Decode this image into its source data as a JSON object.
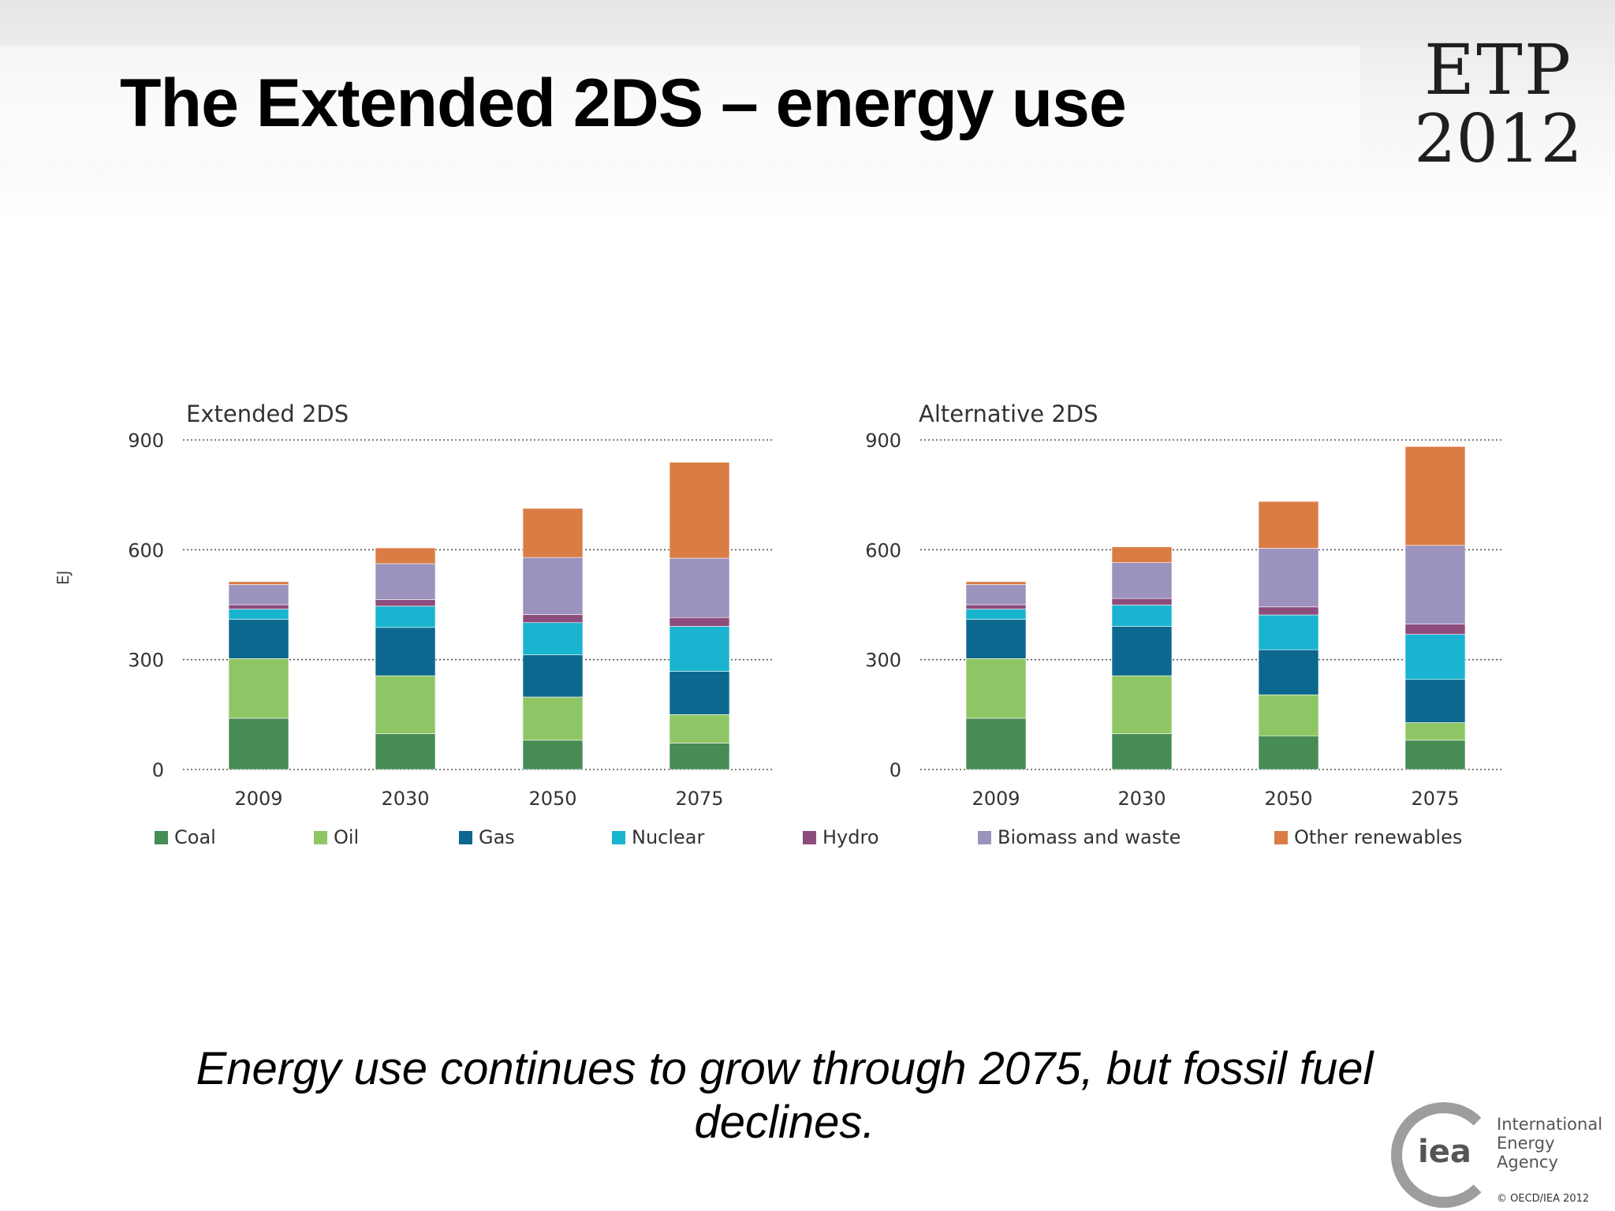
{
  "slide": {
    "title": "The Extended 2DS – energy use",
    "logo_line1": "ETP",
    "logo_line2": "2012",
    "caption": "Energy use continues to grow through 2075, but fossil fuel declines.",
    "iea_mark": "iea",
    "iea_name_line1": "International",
    "iea_name_line2": "Energy Agency",
    "copyright": "© OECD/IEA 2012"
  },
  "chart_data": [
    {
      "type": "bar",
      "stacked": true,
      "title": "Extended 2DS",
      "ylabel": "EJ",
      "ylim": [
        0,
        900
      ],
      "yticks": [
        0,
        300,
        600,
        900
      ],
      "grid": "horizontal dotted",
      "categories": [
        "2009",
        "2030",
        "2050",
        "2075"
      ],
      "series": [
        {
          "name": "Coal",
          "values": [
            140,
            98,
            80,
            72
          ]
        },
        {
          "name": "Oil",
          "values": [
            163,
            158,
            118,
            78
          ]
        },
        {
          "name": "Gas",
          "values": [
            107,
            132,
            115,
            118
          ]
        },
        {
          "name": "Nuclear",
          "values": [
            28,
            58,
            88,
            123
          ]
        },
        {
          "name": "Hydro",
          "values": [
            12,
            18,
            22,
            24
          ]
        },
        {
          "name": "Biomass and waste",
          "values": [
            55,
            98,
            156,
            162
          ]
        },
        {
          "name": "Other renewables",
          "values": [
            8,
            43,
            134,
            262
          ]
        }
      ]
    },
    {
      "type": "bar",
      "stacked": true,
      "title": "Alternative 2DS",
      "ylim": [
        0,
        900
      ],
      "yticks": [
        0,
        300,
        600,
        900
      ],
      "grid": "horizontal dotted",
      "categories": [
        "2009",
        "2030",
        "2050",
        "2075"
      ],
      "series": [
        {
          "name": "Coal",
          "values": [
            140,
            98,
            92,
            80
          ]
        },
        {
          "name": "Oil",
          "values": [
            163,
            158,
            112,
            48
          ]
        },
        {
          "name": "Gas",
          "values": [
            107,
            135,
            123,
            118
          ]
        },
        {
          "name": "Nuclear",
          "values": [
            28,
            58,
            95,
            123
          ]
        },
        {
          "name": "Hydro",
          "values": [
            12,
            18,
            22,
            28
          ]
        },
        {
          "name": "Biomass and waste",
          "values": [
            55,
            98,
            160,
            215
          ]
        },
        {
          "name": "Other renewables",
          "values": [
            8,
            43,
            128,
            270
          ]
        }
      ]
    }
  ],
  "legend": {
    "placement": "bottom",
    "items": [
      {
        "label": "Coal",
        "color": "#478b55"
      },
      {
        "label": "Oil",
        "color": "#8fc665"
      },
      {
        "label": "Gas",
        "color": "#0d6890"
      },
      {
        "label": "Nuclear",
        "color": "#1ab4d0"
      },
      {
        "label": "Hydro",
        "color": "#8c4d7d"
      },
      {
        "label": "Biomass and waste",
        "color": "#9b92bd"
      },
      {
        "label": "Other renewables",
        "color": "#da7d45"
      }
    ]
  }
}
